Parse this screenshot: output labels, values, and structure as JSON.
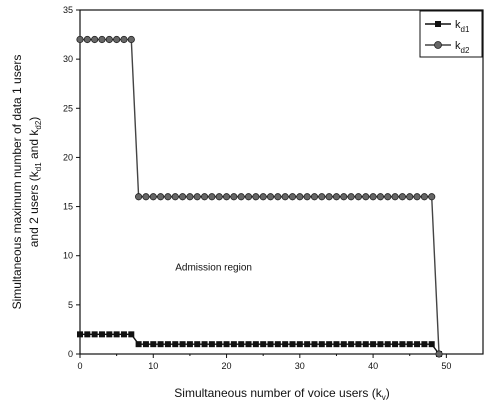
{
  "chart_data": {
    "type": "line",
    "xlabel": {
      "main": "Simultaneous number of voice users (k",
      "sub": "v",
      "end": ")"
    },
    "ylabel": {
      "line1": "Simultaneous maximum number of data 1 users",
      "line2_main": "and 2 users (k",
      "line2_sub1": "d1",
      "line2_mid": " and k",
      "line2_sub2": "d2",
      "line2_end": ")"
    },
    "xlim": [
      0,
      55
    ],
    "ylim": [
      0,
      35
    ],
    "xticks": [
      0,
      10,
      20,
      30,
      40,
      50
    ],
    "yticks": [
      0,
      5,
      10,
      15,
      20,
      25,
      30,
      35
    ],
    "grid": false,
    "legend_position": "top-right",
    "annotations": [
      {
        "text": "Admission region",
        "x": 13,
        "y": 8.5
      }
    ],
    "series": [
      {
        "name_main": "k",
        "name_sub": "d1",
        "marker": "square",
        "color": "#111111",
        "x": [
          0,
          1,
          2,
          3,
          4,
          5,
          6,
          7,
          8,
          9,
          10,
          11,
          12,
          13,
          14,
          15,
          16,
          17,
          18,
          19,
          20,
          21,
          22,
          23,
          24,
          25,
          26,
          27,
          28,
          29,
          30,
          31,
          32,
          33,
          34,
          35,
          36,
          37,
          38,
          39,
          40,
          41,
          42,
          43,
          44,
          45,
          46,
          47,
          48,
          49
        ],
        "y": [
          2,
          2,
          2,
          2,
          2,
          2,
          2,
          2,
          1,
          1,
          1,
          1,
          1,
          1,
          1,
          1,
          1,
          1,
          1,
          1,
          1,
          1,
          1,
          1,
          1,
          1,
          1,
          1,
          1,
          1,
          1,
          1,
          1,
          1,
          1,
          1,
          1,
          1,
          1,
          1,
          1,
          1,
          1,
          1,
          1,
          1,
          1,
          1,
          1,
          0
        ]
      },
      {
        "name_main": "k",
        "name_sub": "d2",
        "marker": "circle",
        "color": "#444444",
        "x": [
          0,
          1,
          2,
          3,
          4,
          5,
          6,
          7,
          8,
          9,
          10,
          11,
          12,
          13,
          14,
          15,
          16,
          17,
          18,
          19,
          20,
          21,
          22,
          23,
          24,
          25,
          26,
          27,
          28,
          29,
          30,
          31,
          32,
          33,
          34,
          35,
          36,
          37,
          38,
          39,
          40,
          41,
          42,
          43,
          44,
          45,
          46,
          47,
          48,
          49
        ],
        "y": [
          32,
          32,
          32,
          32,
          32,
          32,
          32,
          32,
          16,
          16,
          16,
          16,
          16,
          16,
          16,
          16,
          16,
          16,
          16,
          16,
          16,
          16,
          16,
          16,
          16,
          16,
          16,
          16,
          16,
          16,
          16,
          16,
          16,
          16,
          16,
          16,
          16,
          16,
          16,
          16,
          16,
          16,
          16,
          16,
          16,
          16,
          16,
          16,
          16,
          0
        ]
      }
    ]
  }
}
